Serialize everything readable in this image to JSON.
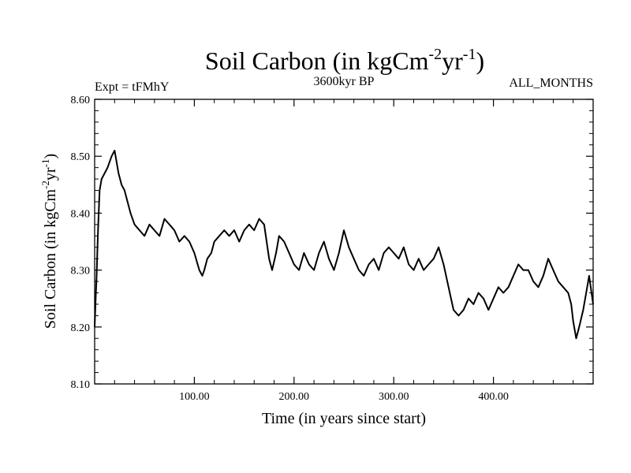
{
  "chart_data": {
    "type": "line",
    "title": "Soil Carbon (in kgCm",
    "title_sup1": "-2",
    "title_mid": "yr",
    "title_sup2": "-1",
    "title_end": ")",
    "left_label": "Expt = tFMhY",
    "center_label": "3600kyr BP",
    "right_label": "ALL_MONTHS",
    "xlabel": "Time (in years since start)",
    "ylabel": "Soil Carbon (in kgCm",
    "ylabel_sup1": "-2",
    "ylabel_mid": "yr",
    "ylabel_sup2": "-1",
    "ylabel_end": ")",
    "xlim": [
      0,
      500
    ],
    "ylim": [
      8.1,
      8.6
    ],
    "xticks": [
      100,
      200,
      300,
      400
    ],
    "xtick_labels": [
      "100.00",
      "200.00",
      "300.00",
      "400.00"
    ],
    "yticks": [
      8.1,
      8.2,
      8.3,
      8.4,
      8.5,
      8.6
    ],
    "ytick_labels": [
      "8.10",
      "8.20",
      "8.30",
      "8.40",
      "8.50",
      "8.60"
    ],
    "series": [
      {
        "name": "Soil Carbon",
        "x": [
          0,
          1,
          2,
          3,
          4,
          5,
          7,
          10,
          13,
          17,
          20,
          22,
          24,
          27,
          30,
          33,
          36,
          40,
          45,
          50,
          55,
          60,
          65,
          70,
          75,
          80,
          85,
          90,
          95,
          100,
          105,
          108,
          110,
          113,
          117,
          120,
          125,
          130,
          135,
          140,
          145,
          150,
          155,
          160,
          165,
          170,
          175,
          178,
          182,
          185,
          190,
          195,
          200,
          205,
          210,
          215,
          220,
          225,
          230,
          235,
          240,
          245,
          250,
          255,
          260,
          265,
          270,
          275,
          280,
          285,
          290,
          295,
          300,
          305,
          310,
          315,
          320,
          325,
          330,
          335,
          340,
          345,
          350,
          355,
          360,
          365,
          370,
          375,
          380,
          385,
          390,
          395,
          400,
          405,
          410,
          415,
          420,
          425,
          430,
          435,
          440,
          445,
          450,
          455,
          460,
          465,
          470,
          475,
          478,
          480,
          483,
          486,
          490,
          493,
          496,
          500
        ],
        "values": [
          8.2,
          8.25,
          8.29,
          8.35,
          8.4,
          8.44,
          8.46,
          8.47,
          8.48,
          8.5,
          8.51,
          8.49,
          8.47,
          8.45,
          8.44,
          8.42,
          8.4,
          8.38,
          8.37,
          8.36,
          8.38,
          8.37,
          8.36,
          8.39,
          8.38,
          8.37,
          8.35,
          8.36,
          8.35,
          8.33,
          8.3,
          8.29,
          8.3,
          8.32,
          8.33,
          8.35,
          8.36,
          8.37,
          8.36,
          8.37,
          8.35,
          8.37,
          8.38,
          8.37,
          8.39,
          8.38,
          8.32,
          8.3,
          8.33,
          8.36,
          8.35,
          8.33,
          8.31,
          8.3,
          8.33,
          8.31,
          8.3,
          8.33,
          8.35,
          8.32,
          8.3,
          8.33,
          8.37,
          8.34,
          8.32,
          8.3,
          8.29,
          8.31,
          8.32,
          8.3,
          8.33,
          8.34,
          8.33,
          8.32,
          8.34,
          8.31,
          8.3,
          8.32,
          8.3,
          8.31,
          8.32,
          8.34,
          8.31,
          8.27,
          8.23,
          8.22,
          8.23,
          8.25,
          8.24,
          8.26,
          8.25,
          8.23,
          8.25,
          8.27,
          8.26,
          8.27,
          8.29,
          8.31,
          8.3,
          8.3,
          8.28,
          8.27,
          8.29,
          8.32,
          8.3,
          8.28,
          8.27,
          8.26,
          8.24,
          8.21,
          8.18,
          8.2,
          8.23,
          8.26,
          8.29,
          8.24
        ]
      }
    ]
  }
}
